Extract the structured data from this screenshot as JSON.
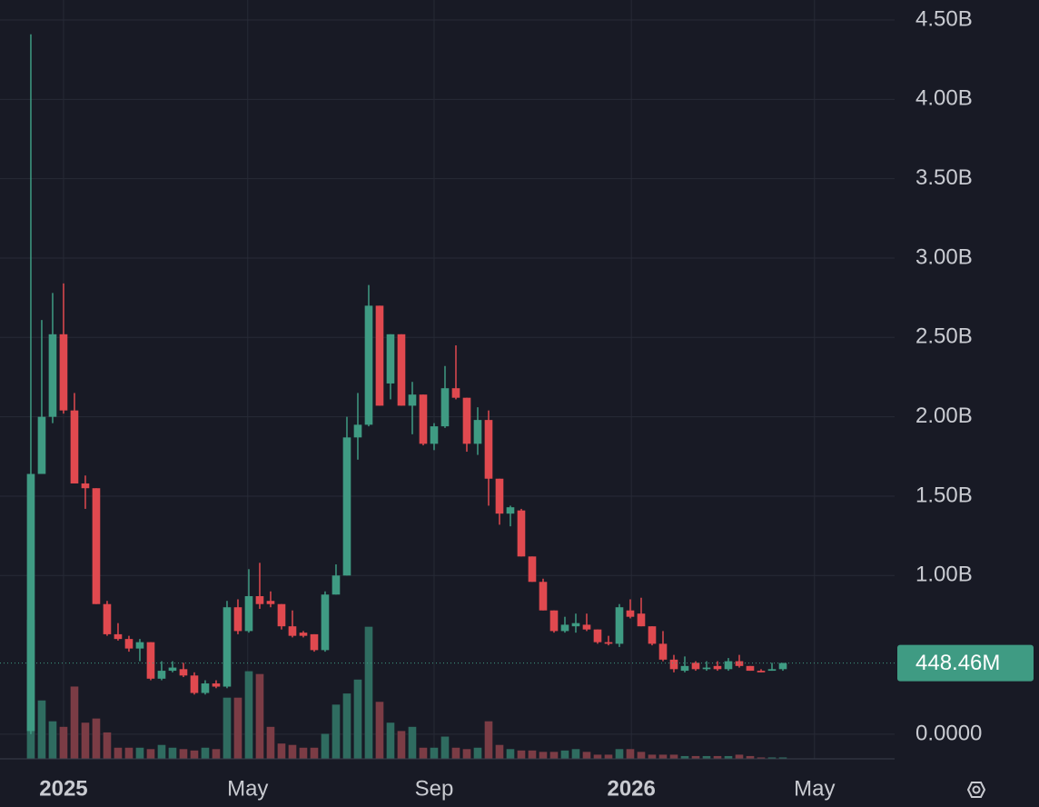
{
  "chart_data": {
    "type": "candlestick",
    "up_color": "#3f9b83",
    "down_color": "#e0494f",
    "volume_up_color": "#2f6c60",
    "volume_down_color": "#7b3c45",
    "grid": true,
    "ylim": [
      -0.155,
      4.626
    ],
    "yticks": [
      {
        "value": 0,
        "label": "0.0000"
      },
      {
        "value": 1.0,
        "label": "1.00B"
      },
      {
        "value": 1.5,
        "label": "1.50B"
      },
      {
        "value": 2.0,
        "label": "2.00B"
      },
      {
        "value": 2.5,
        "label": "2.50B"
      },
      {
        "value": 3.0,
        "label": "3.00B"
      },
      {
        "value": 3.5,
        "label": "3.50B"
      },
      {
        "value": 4.0,
        "label": "4.00B"
      },
      {
        "value": 4.5,
        "label": "4.50B"
      }
    ],
    "xlim": [
      -2.83,
      79.25
    ],
    "xticks": [
      {
        "value": 3.0,
        "label": "2025"
      },
      {
        "value": 19.9,
        "label": "May"
      },
      {
        "value": 37.0,
        "label": "Sep"
      },
      {
        "value": 55.1,
        "label": "2026"
      },
      {
        "value": 71.9,
        "label": "May"
      }
    ],
    "y2lim": [
      0,
      100
    ],
    "open": [
      0.02,
      1.64,
      2.0,
      2.52,
      2.04,
      1.58,
      1.55,
      0.82,
      0.63,
      0.6,
      0.54,
      0.58,
      0.35,
      0.4,
      0.41,
      0.37,
      0.26,
      0.32,
      0.3,
      0.8,
      0.65,
      0.87,
      0.84,
      0.82,
      0.68,
      0.64,
      0.63,
      0.53,
      0.88,
      1.0,
      1.87,
      1.95,
      2.7,
      2.21,
      2.52,
      2.07,
      2.14,
      1.83,
      1.94,
      2.18,
      2.12,
      1.83,
      1.98,
      1.61,
      1.39,
      1.41,
      1.12,
      0.96,
      0.78,
      0.65,
      0.68,
      0.69,
      0.66,
      0.58,
      0.57,
      0.78,
      0.76,
      0.68,
      0.57,
      0.47,
      0.4,
      0.45,
      0.41,
      0.43,
      0.41,
      0.46,
      0.43,
      0.4,
      0.4,
      0.41
    ],
    "high": [
      4.41,
      2.61,
      2.78,
      2.84,
      2.15,
      1.63,
      1.55,
      0.84,
      0.7,
      0.62,
      0.6,
      0.58,
      0.46,
      0.46,
      0.45,
      0.39,
      0.34,
      0.34,
      0.84,
      0.85,
      1.04,
      1.08,
      0.9,
      0.82,
      0.78,
      0.65,
      0.63,
      0.9,
      1.07,
      2.0,
      2.15,
      2.83,
      2.7,
      2.52,
      2.52,
      2.22,
      2.14,
      1.96,
      2.32,
      2.45,
      2.12,
      2.06,
      2.04,
      1.61,
      1.44,
      1.42,
      1.12,
      0.98,
      0.78,
      0.74,
      0.76,
      0.76,
      0.66,
      0.62,
      0.82,
      0.85,
      0.86,
      0.68,
      0.65,
      0.5,
      0.49,
      0.46,
      0.46,
      0.46,
      0.48,
      0.5,
      0.43,
      0.41,
      0.45,
      0.45
    ],
    "low": [
      0.0,
      1.64,
      1.96,
      2.02,
      1.58,
      1.42,
      0.82,
      0.62,
      0.59,
      0.52,
      0.46,
      0.34,
      0.34,
      0.39,
      0.36,
      0.25,
      0.25,
      0.29,
      0.29,
      0.63,
      0.64,
      0.79,
      0.8,
      0.66,
      0.61,
      0.61,
      0.52,
      0.52,
      0.88,
      1.0,
      1.73,
      1.94,
      2.07,
      2.11,
      2.07,
      1.89,
      1.82,
      1.79,
      1.93,
      2.11,
      1.78,
      1.76,
      1.44,
      1.32,
      1.31,
      1.12,
      0.96,
      0.78,
      0.64,
      0.64,
      0.64,
      0.65,
      0.57,
      0.56,
      0.55,
      0.73,
      0.68,
      0.56,
      0.46,
      0.39,
      0.39,
      0.4,
      0.4,
      0.4,
      0.4,
      0.42,
      0.4,
      0.39,
      0.4,
      0.4
    ],
    "close": [
      1.64,
      2.0,
      2.52,
      2.04,
      1.58,
      1.55,
      0.82,
      0.63,
      0.6,
      0.54,
      0.58,
      0.35,
      0.4,
      0.42,
      0.37,
      0.26,
      0.32,
      0.3,
      0.8,
      0.65,
      0.87,
      0.82,
      0.82,
      0.68,
      0.62,
      0.62,
      0.53,
      0.88,
      1.0,
      1.87,
      1.95,
      2.7,
      2.07,
      2.52,
      2.07,
      2.14,
      1.83,
      1.94,
      2.18,
      2.12,
      1.83,
      1.98,
      1.61,
      1.39,
      1.43,
      1.12,
      0.96,
      0.78,
      0.65,
      0.69,
      0.7,
      0.66,
      0.58,
      0.57,
      0.8,
      0.74,
      0.68,
      0.57,
      0.47,
      0.41,
      0.43,
      0.41,
      0.42,
      0.41,
      0.46,
      0.43,
      0.4,
      0.39,
      0.41,
      0.44846
    ],
    "volume": [
      100,
      42,
      27,
      23,
      52,
      26,
      29,
      19,
      8,
      8,
      8,
      7,
      10,
      8,
      7,
      6,
      8,
      7,
      44,
      44,
      63,
      61,
      23,
      11,
      10,
      8,
      8,
      18,
      39,
      47,
      57,
      95,
      41,
      26,
      20,
      23,
      8,
      8,
      16,
      8,
      7,
      8,
      27,
      10,
      7,
      6,
      6,
      5,
      5,
      6,
      7,
      5,
      3,
      3,
      7,
      7,
      5,
      3,
      3,
      3,
      2,
      2,
      2,
      2,
      2,
      3,
      2,
      1,
      1,
      1
    ],
    "last_price": 0.44846,
    "last_price_label": "448.46M"
  }
}
